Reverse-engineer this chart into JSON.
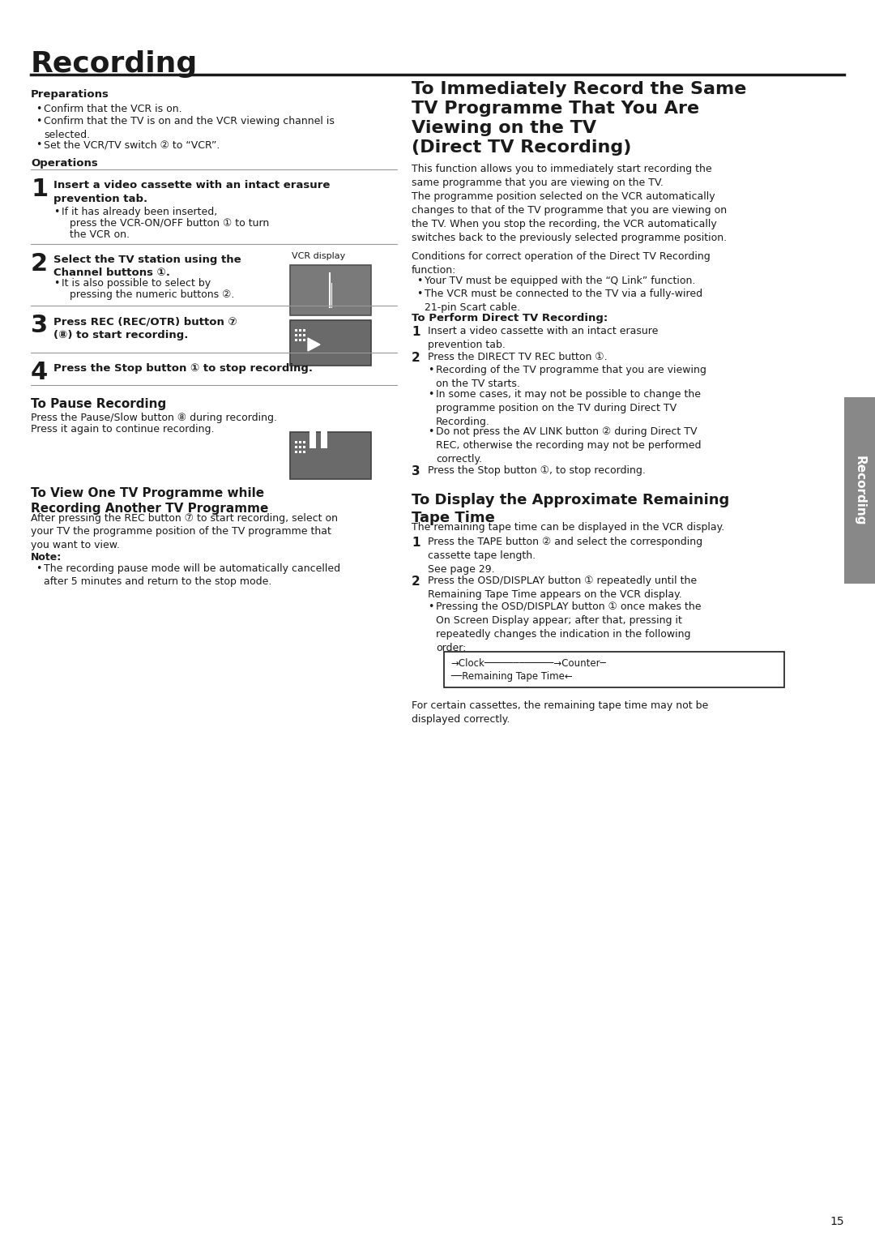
{
  "title": "Recording",
  "bg_color": "#ffffff",
  "text_color": "#1a1a1a",
  "page_number": "15",
  "sidebar_text": "Recording"
}
